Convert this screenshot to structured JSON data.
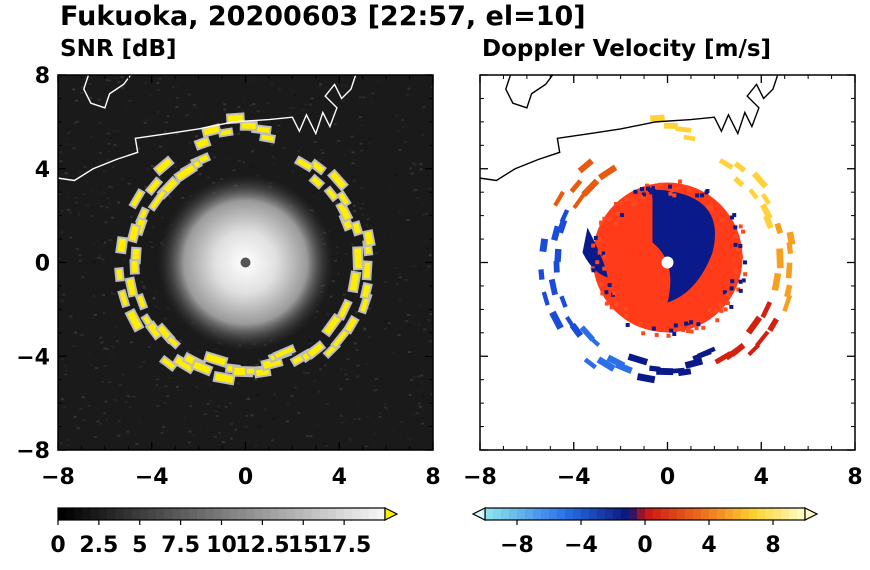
{
  "figure": {
    "title": "Fukuoka, 20200603 [22:57, el=10]"
  },
  "chart_data": [
    {
      "type": "heatmap",
      "title": "SNR [dB]",
      "xlabel": "",
      "ylabel": "",
      "xlim": [
        -8,
        8
      ],
      "ylim": [
        -8,
        8
      ],
      "x_ticks": [
        "−8",
        "−4",
        "0",
        "4",
        "8"
      ],
      "y_ticks": [
        "8",
        "4",
        "0",
        "−4",
        "−8"
      ],
      "colorbar": {
        "range": [
          0,
          20
        ],
        "ticks": [
          "0",
          "2.5",
          "5",
          "7.5",
          "10",
          "12.5",
          "15",
          "17.5"
        ],
        "tick_values": [
          0,
          2.5,
          5,
          7.5,
          10,
          12.5,
          15,
          17.5
        ],
        "colormap": "grayscale",
        "extend": "max",
        "extend_color": "#ffee00"
      },
      "features": {
        "echo_ring_radius": 5.0,
        "echo_ring_color": "#ffee00",
        "clutter_center_max_radius": 3.5,
        "blind_center": [
          0,
          0
        ]
      }
    },
    {
      "type": "heatmap",
      "title": "Doppler Velocity [m/s]",
      "xlabel": "",
      "ylabel": "",
      "xlim": [
        -8,
        8
      ],
      "ylim": [
        -8,
        8
      ],
      "x_ticks": [
        "−8",
        "−4",
        "0",
        "4",
        "8"
      ],
      "y_ticks": [],
      "colorbar": {
        "range": [
          -10,
          10
        ],
        "ticks": [
          "−8",
          "−4",
          "0",
          "4",
          "8"
        ],
        "tick_values": [
          -8,
          -4,
          0,
          4,
          8
        ],
        "colormap": "cyan-blue-navy-red-orange-yellow",
        "extend": "both",
        "extend_colors": [
          "#d8f6fc",
          "#fffbc8"
        ]
      },
      "features": {
        "inner_core_radius": 3.2,
        "echo_ring_radius": 5.0,
        "negative_color": "#0a1a8a",
        "positive_color": "#ff3b1a"
      }
    }
  ],
  "colors": {
    "coastline": "#000000",
    "snr_background": "#1a1a1a"
  }
}
